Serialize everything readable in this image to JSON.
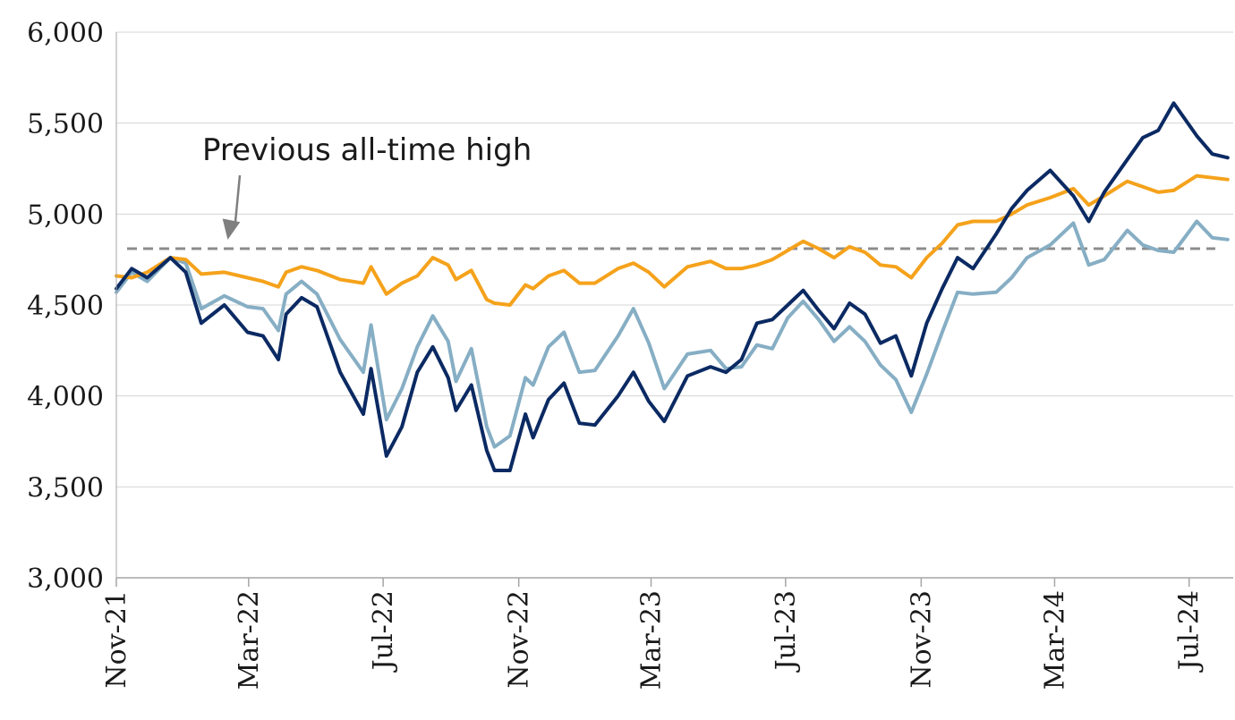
{
  "chart_data": {
    "type": "line",
    "title": "",
    "xlabel": "",
    "ylabel": "",
    "ylim": [
      3000,
      6000
    ],
    "yticks": [
      "3,000",
      "3,500",
      "4,000",
      "4,500",
      "5,000",
      "5,500",
      "6,000"
    ],
    "ytick_values": [
      3000,
      3500,
      4000,
      4500,
      5000,
      5500,
      6000
    ],
    "xticks": [
      "Nov-21",
      "Mar-22",
      "Jul-22",
      "Nov-22",
      "Mar-23",
      "Jul-23",
      "Nov-23",
      "Mar-24",
      "Jul-24"
    ],
    "xtick_dates": [
      "2021-11-01",
      "2022-03-01",
      "2022-07-01",
      "2022-11-01",
      "2023-03-01",
      "2023-07-01",
      "2023-11-01",
      "2024-03-01",
      "2024-07-01"
    ],
    "x_range": [
      "2021-11-01",
      "2024-08-10"
    ],
    "grid": true,
    "legend": "none",
    "reference_line": {
      "value": 4810,
      "color": "#8c8c8c",
      "style": "dashed"
    },
    "annotation": {
      "text": "Previous all-time high",
      "arrow_target": {
        "x": "2022-02-10",
        "y": 4810
      }
    },
    "series": [
      {
        "color": "#0b2a63",
        "points": [
          [
            "2021-11-01",
            4590
          ],
          [
            "2021-11-15",
            4700
          ],
          [
            "2021-11-29",
            4650
          ],
          [
            "2021-12-20",
            4760
          ],
          [
            "2022-01-03",
            4680
          ],
          [
            "2022-01-17",
            4400
          ],
          [
            "2022-02-07",
            4500
          ],
          [
            "2022-02-28",
            4350
          ],
          [
            "2022-03-14",
            4330
          ],
          [
            "2022-03-28",
            4200
          ],
          [
            "2022-04-04",
            4450
          ],
          [
            "2022-04-18",
            4540
          ],
          [
            "2022-05-02",
            4490
          ],
          [
            "2022-05-23",
            4130
          ],
          [
            "2022-06-13",
            3900
          ],
          [
            "2022-06-20",
            4150
          ],
          [
            "2022-07-04",
            3670
          ],
          [
            "2022-07-18",
            3830
          ],
          [
            "2022-08-01",
            4130
          ],
          [
            "2022-08-15",
            4270
          ],
          [
            "2022-08-29",
            4100
          ],
          [
            "2022-09-05",
            3920
          ],
          [
            "2022-09-19",
            4060
          ],
          [
            "2022-10-03",
            3700
          ],
          [
            "2022-10-10",
            3590
          ],
          [
            "2022-10-24",
            3590
          ],
          [
            "2022-11-07",
            3900
          ],
          [
            "2022-11-14",
            3770
          ],
          [
            "2022-11-28",
            3980
          ],
          [
            "2022-12-12",
            4070
          ],
          [
            "2022-12-26",
            3850
          ],
          [
            "2023-01-09",
            3840
          ],
          [
            "2023-01-30",
            4000
          ],
          [
            "2023-02-13",
            4130
          ],
          [
            "2023-02-27",
            3970
          ],
          [
            "2023-03-13",
            3860
          ],
          [
            "2023-04-03",
            4110
          ],
          [
            "2023-04-24",
            4160
          ],
          [
            "2023-05-08",
            4130
          ],
          [
            "2023-05-22",
            4200
          ],
          [
            "2023-06-05",
            4400
          ],
          [
            "2023-06-19",
            4420
          ],
          [
            "2023-07-03",
            4500
          ],
          [
            "2023-07-17",
            4580
          ],
          [
            "2023-07-31",
            4470
          ],
          [
            "2023-08-14",
            4370
          ],
          [
            "2023-08-28",
            4510
          ],
          [
            "2023-09-11",
            4450
          ],
          [
            "2023-09-25",
            4290
          ],
          [
            "2023-10-09",
            4330
          ],
          [
            "2023-10-23",
            4110
          ],
          [
            "2023-11-06",
            4400
          ],
          [
            "2023-11-20",
            4590
          ],
          [
            "2023-12-04",
            4760
          ],
          [
            "2023-12-18",
            4700
          ],
          [
            "2024-01-08",
            4890
          ],
          [
            "2024-01-22",
            5030
          ],
          [
            "2024-02-05",
            5130
          ],
          [
            "2024-02-26",
            5240
          ],
          [
            "2024-03-18",
            5100
          ],
          [
            "2024-04-01",
            4960
          ],
          [
            "2024-04-15",
            5120
          ],
          [
            "2024-05-06",
            5300
          ],
          [
            "2024-05-20",
            5420
          ],
          [
            "2024-06-03",
            5460
          ],
          [
            "2024-06-17",
            5610
          ],
          [
            "2024-07-08",
            5430
          ],
          [
            "2024-07-22",
            5330
          ],
          [
            "2024-08-05",
            5310
          ]
        ]
      },
      {
        "color": "#86aec4",
        "points": [
          [
            "2021-11-01",
            4570
          ],
          [
            "2021-11-15",
            4680
          ],
          [
            "2021-11-29",
            4630
          ],
          [
            "2021-12-20",
            4760
          ],
          [
            "2022-01-03",
            4730
          ],
          [
            "2022-01-17",
            4480
          ],
          [
            "2022-02-07",
            4550
          ],
          [
            "2022-02-28",
            4490
          ],
          [
            "2022-03-14",
            4480
          ],
          [
            "2022-03-28",
            4360
          ],
          [
            "2022-04-04",
            4560
          ],
          [
            "2022-04-18",
            4630
          ],
          [
            "2022-05-02",
            4560
          ],
          [
            "2022-05-23",
            4310
          ],
          [
            "2022-06-13",
            4130
          ],
          [
            "2022-06-20",
            4390
          ],
          [
            "2022-07-04",
            3870
          ],
          [
            "2022-07-18",
            4040
          ],
          [
            "2022-08-01",
            4270
          ],
          [
            "2022-08-15",
            4440
          ],
          [
            "2022-08-29",
            4300
          ],
          [
            "2022-09-05",
            4080
          ],
          [
            "2022-09-19",
            4260
          ],
          [
            "2022-10-03",
            3830
          ],
          [
            "2022-10-10",
            3720
          ],
          [
            "2022-10-24",
            3780
          ],
          [
            "2022-11-07",
            4100
          ],
          [
            "2022-11-14",
            4060
          ],
          [
            "2022-11-28",
            4270
          ],
          [
            "2022-12-12",
            4350
          ],
          [
            "2022-12-26",
            4130
          ],
          [
            "2023-01-09",
            4140
          ],
          [
            "2023-01-30",
            4330
          ],
          [
            "2023-02-13",
            4480
          ],
          [
            "2023-02-27",
            4290
          ],
          [
            "2023-03-13",
            4040
          ],
          [
            "2023-04-03",
            4230
          ],
          [
            "2023-04-24",
            4250
          ],
          [
            "2023-05-08",
            4150
          ],
          [
            "2023-05-22",
            4160
          ],
          [
            "2023-06-05",
            4280
          ],
          [
            "2023-06-19",
            4260
          ],
          [
            "2023-07-03",
            4430
          ],
          [
            "2023-07-17",
            4520
          ],
          [
            "2023-07-31",
            4420
          ],
          [
            "2023-08-14",
            4300
          ],
          [
            "2023-08-28",
            4380
          ],
          [
            "2023-09-11",
            4300
          ],
          [
            "2023-09-25",
            4170
          ],
          [
            "2023-10-09",
            4090
          ],
          [
            "2023-10-23",
            3910
          ],
          [
            "2023-11-06",
            4120
          ],
          [
            "2023-11-20",
            4350
          ],
          [
            "2023-12-04",
            4570
          ],
          [
            "2023-12-18",
            4560
          ],
          [
            "2024-01-08",
            4570
          ],
          [
            "2024-01-22",
            4650
          ],
          [
            "2024-02-05",
            4760
          ],
          [
            "2024-02-26",
            4830
          ],
          [
            "2024-03-18",
            4950
          ],
          [
            "2024-04-01",
            4720
          ],
          [
            "2024-04-15",
            4750
          ],
          [
            "2024-05-06",
            4910
          ],
          [
            "2024-05-20",
            4830
          ],
          [
            "2024-06-03",
            4800
          ],
          [
            "2024-06-17",
            4790
          ],
          [
            "2024-07-08",
            4960
          ],
          [
            "2024-07-22",
            4870
          ],
          [
            "2024-08-05",
            4860
          ]
        ]
      },
      {
        "color": "#f5a21b",
        "points": [
          [
            "2021-11-01",
            4660
          ],
          [
            "2021-11-15",
            4650
          ],
          [
            "2021-11-29",
            4680
          ],
          [
            "2021-12-20",
            4760
          ],
          [
            "2022-01-03",
            4750
          ],
          [
            "2022-01-17",
            4670
          ],
          [
            "2022-02-07",
            4680
          ],
          [
            "2022-02-28",
            4650
          ],
          [
            "2022-03-14",
            4630
          ],
          [
            "2022-03-28",
            4600
          ],
          [
            "2022-04-04",
            4680
          ],
          [
            "2022-04-18",
            4710
          ],
          [
            "2022-05-02",
            4690
          ],
          [
            "2022-05-23",
            4640
          ],
          [
            "2022-06-13",
            4620
          ],
          [
            "2022-06-20",
            4710
          ],
          [
            "2022-07-04",
            4560
          ],
          [
            "2022-07-18",
            4620
          ],
          [
            "2022-08-01",
            4660
          ],
          [
            "2022-08-15",
            4760
          ],
          [
            "2022-08-29",
            4720
          ],
          [
            "2022-09-05",
            4640
          ],
          [
            "2022-09-19",
            4690
          ],
          [
            "2022-10-03",
            4530
          ],
          [
            "2022-10-10",
            4510
          ],
          [
            "2022-10-24",
            4500
          ],
          [
            "2022-11-07",
            4610
          ],
          [
            "2022-11-14",
            4590
          ],
          [
            "2022-11-28",
            4660
          ],
          [
            "2022-12-12",
            4690
          ],
          [
            "2022-12-26",
            4620
          ],
          [
            "2023-01-09",
            4620
          ],
          [
            "2023-01-30",
            4700
          ],
          [
            "2023-02-13",
            4730
          ],
          [
            "2023-02-27",
            4680
          ],
          [
            "2023-03-13",
            4600
          ],
          [
            "2023-04-03",
            4710
          ],
          [
            "2023-04-24",
            4740
          ],
          [
            "2023-05-08",
            4700
          ],
          [
            "2023-05-22",
            4700
          ],
          [
            "2023-06-05",
            4720
          ],
          [
            "2023-06-19",
            4750
          ],
          [
            "2023-07-03",
            4800
          ],
          [
            "2023-07-17",
            4850
          ],
          [
            "2023-07-31",
            4810
          ],
          [
            "2023-08-14",
            4760
          ],
          [
            "2023-08-28",
            4820
          ],
          [
            "2023-09-11",
            4790
          ],
          [
            "2023-09-25",
            4720
          ],
          [
            "2023-10-09",
            4710
          ],
          [
            "2023-10-23",
            4650
          ],
          [
            "2023-11-06",
            4760
          ],
          [
            "2023-11-20",
            4840
          ],
          [
            "2023-12-04",
            4940
          ],
          [
            "2023-12-18",
            4960
          ],
          [
            "2024-01-08",
            4960
          ],
          [
            "2024-01-22",
            5000
          ],
          [
            "2024-02-05",
            5050
          ],
          [
            "2024-02-26",
            5090
          ],
          [
            "2024-03-18",
            5140
          ],
          [
            "2024-04-01",
            5050
          ],
          [
            "2024-04-15",
            5100
          ],
          [
            "2024-05-06",
            5180
          ],
          [
            "2024-05-20",
            5150
          ],
          [
            "2024-06-03",
            5120
          ],
          [
            "2024-06-17",
            5130
          ],
          [
            "2024-07-08",
            5210
          ],
          [
            "2024-07-22",
            5200
          ],
          [
            "2024-08-05",
            5190
          ]
        ]
      }
    ]
  }
}
